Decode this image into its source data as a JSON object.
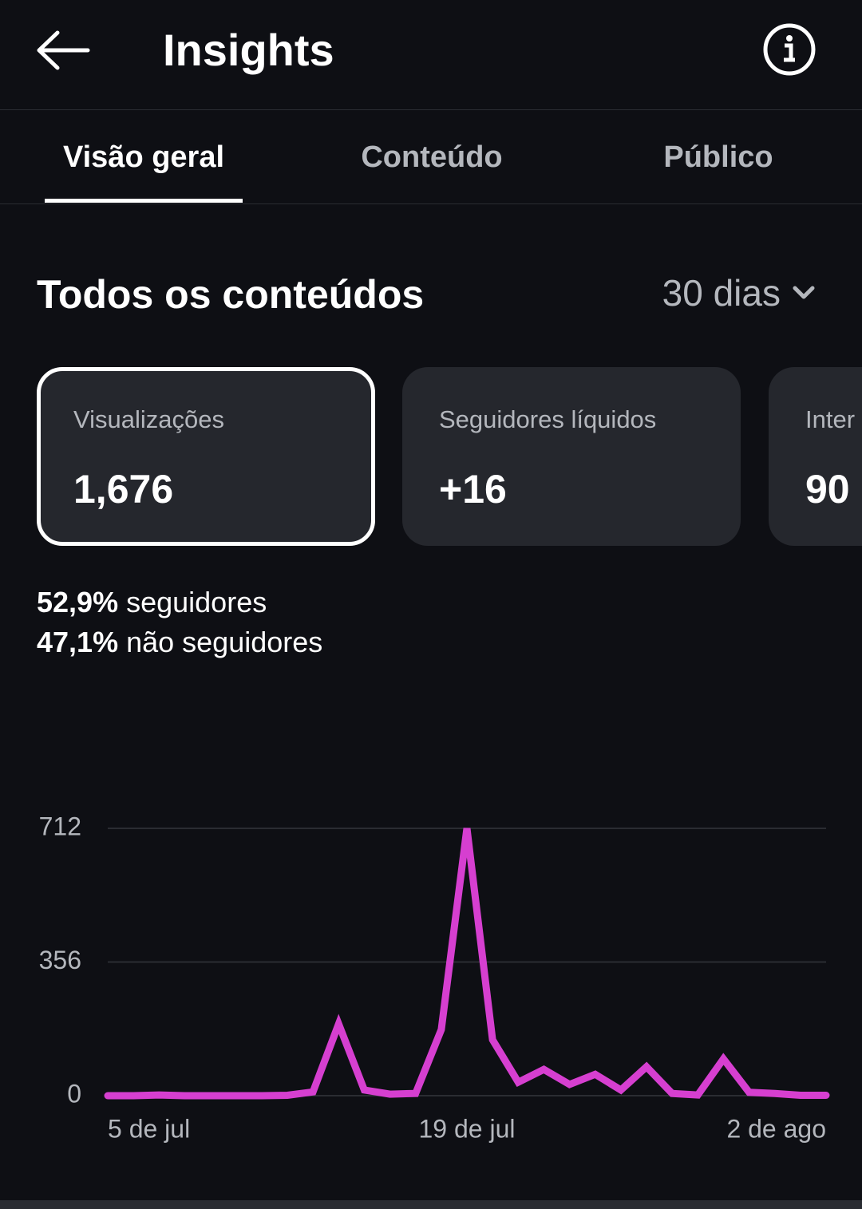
{
  "header": {
    "title": "Insights"
  },
  "tabs": [
    "Visão geral",
    "Conteúdo",
    "Público"
  ],
  "section": {
    "title": "Todos os conteúdos",
    "period": "30 dias"
  },
  "cards": [
    {
      "label": "Visualizações",
      "value": "1,676"
    },
    {
      "label": "Seguidores líquidos",
      "value": "+16"
    },
    {
      "label": "Inter",
      "value": "90"
    }
  ],
  "breakdown": [
    {
      "percent": "52,9%",
      "label": "seguidores"
    },
    {
      "percent": "47,1%",
      "label": "não seguidores"
    }
  ],
  "chart_data": {
    "type": "line",
    "categories": [
      "5 de jul",
      null,
      null,
      null,
      null,
      null,
      null,
      null,
      null,
      null,
      null,
      null,
      null,
      null,
      "19 de jul",
      null,
      null,
      null,
      null,
      null,
      null,
      null,
      null,
      null,
      null,
      null,
      null,
      null,
      "2 de ago"
    ],
    "values": [
      0,
      0,
      2,
      0,
      0,
      0,
      0,
      1,
      10,
      191,
      15,
      4,
      6,
      176,
      712,
      149,
      36,
      70,
      30,
      57,
      15,
      77,
      6,
      2,
      98,
      9,
      6,
      1,
      1
    ],
    "color": "#d63fd0",
    "ylim": [
      0,
      712
    ],
    "yticks": [
      0,
      356,
      712
    ],
    "grid": true
  }
}
